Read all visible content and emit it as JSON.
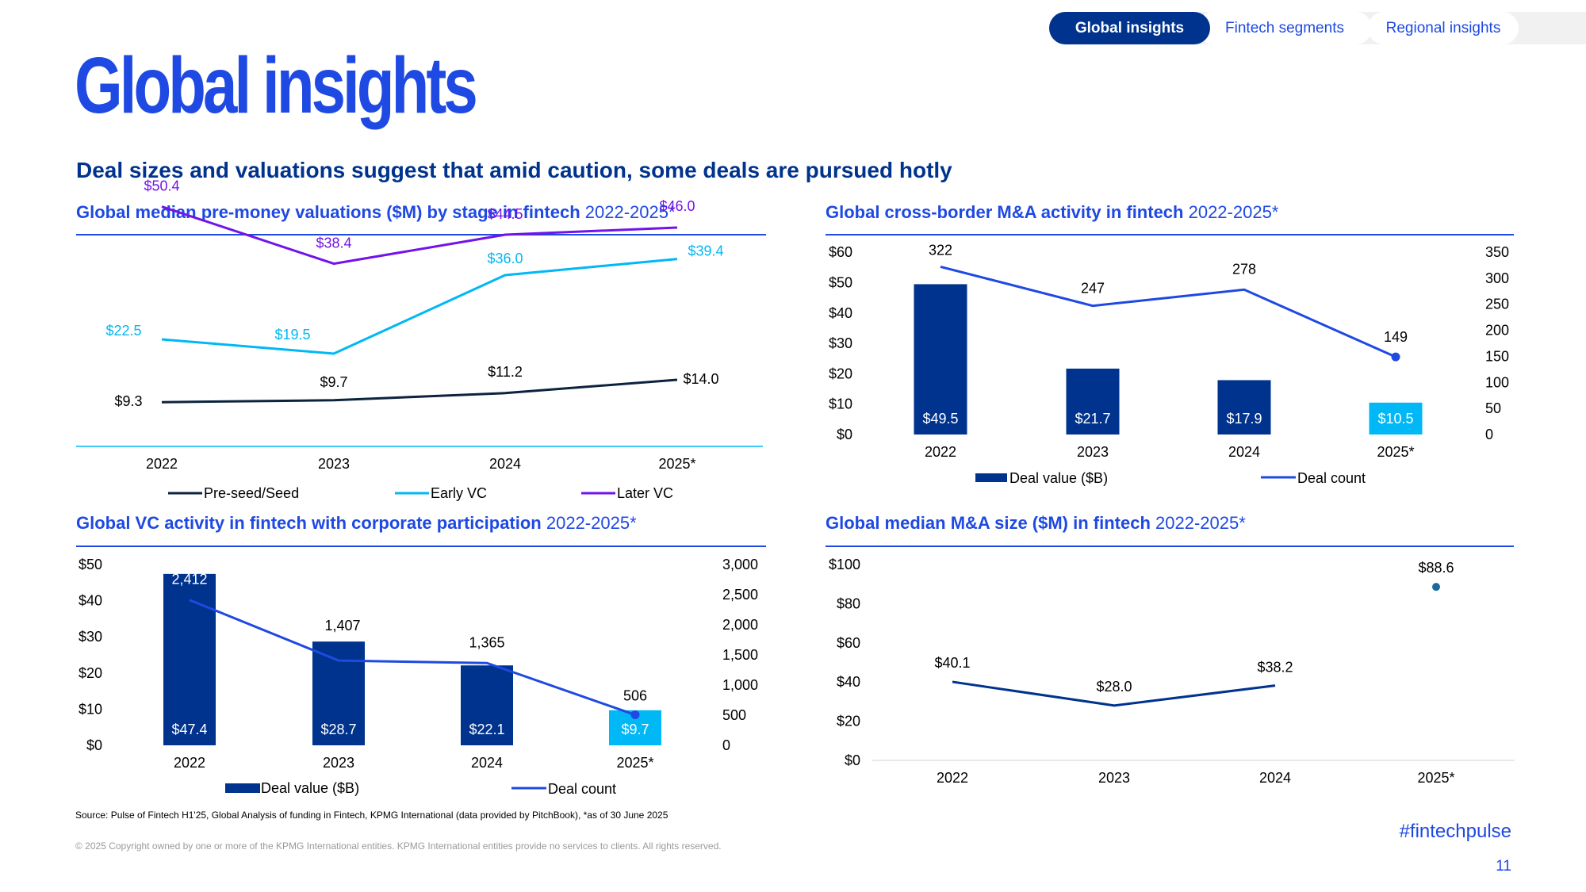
{
  "tabs": {
    "active": "Global insights",
    "items": [
      "Fintech segments",
      "Regional insights"
    ]
  },
  "page_title": "Global insights",
  "subtitle": "Deal sizes and valuations suggest that amid caution, some deals are pursued hotly",
  "colors": {
    "dark_navy": "#0c233f",
    "navy": "#00338d",
    "cobalt": "#1e49e2",
    "cyan": "#00b8f5",
    "purple": "#7213ea",
    "dot": "#1b6a9c"
  },
  "chart_data": [
    {
      "id": "valuations",
      "type": "line",
      "title_bold": "Global median pre-money valuations ($M) by stage in fintech",
      "title_rest": " 2022-2025*",
      "categories": [
        "2022",
        "2023",
        "2024",
        "2025*"
      ],
      "series": [
        {
          "name": "Pre-seed/Seed",
          "values": [
            9.3,
            9.7,
            11.2,
            14.0
          ],
          "labels": [
            "$9.3",
            "$9.7",
            "$11.2",
            "$14.0"
          ]
        },
        {
          "name": "Early VC",
          "values": [
            22.5,
            19.5,
            36.0,
            39.4
          ],
          "labels": [
            "$22.5",
            "$19.5",
            "$36.0",
            "$39.4"
          ]
        },
        {
          "name": "Later VC",
          "values": [
            50.4,
            38.4,
            44.5,
            46.0
          ],
          "labels": [
            "$50.4",
            "$38.4",
            "$44.5",
            "$46.0"
          ]
        }
      ],
      "ylim": [
        0,
        60
      ],
      "legend_position": "bottom"
    },
    {
      "id": "cross_border",
      "type": "bar",
      "title_bold": "Global cross-border M&A activity in fintech",
      "title_rest": " 2022-2025*",
      "categories": [
        "2022",
        "2023",
        "2024",
        "2025*"
      ],
      "bars": {
        "name": "Deal value ($B)",
        "values": [
          49.5,
          21.7,
          17.9,
          10.5
        ],
        "labels": [
          "$49.5",
          "$21.7",
          "$17.9",
          "$10.5"
        ]
      },
      "line": {
        "name": "Deal count",
        "values": [
          322,
          247,
          278,
          149
        ],
        "labels": [
          "322",
          "247",
          "278",
          "149"
        ]
      },
      "left_ticks": [
        "$0",
        "$10",
        "$20",
        "$30",
        "$40",
        "$50",
        "$60"
      ],
      "right_ticks": [
        "0",
        "50",
        "100",
        "150",
        "200",
        "250",
        "300",
        "350"
      ],
      "ylim_left": [
        0,
        60
      ],
      "ylim_right": [
        0,
        350
      ],
      "legend_position": "bottom"
    },
    {
      "id": "corporate_vc",
      "type": "bar",
      "title_bold": "Global VC activity in fintech with corporate participation",
      "title_rest": " 2022-2025*",
      "categories": [
        "2022",
        "2023",
        "2024",
        "2025*"
      ],
      "bars": {
        "name": "Deal value ($B)",
        "values": [
          47.4,
          28.7,
          22.1,
          9.7
        ],
        "labels": [
          "$47.4",
          "$28.7",
          "$22.1",
          "$9.7"
        ]
      },
      "line": {
        "name": "Deal count",
        "values": [
          2412,
          1407,
          1365,
          506
        ],
        "labels": [
          "2,412",
          "1,407",
          "1,365",
          "506"
        ]
      },
      "left_ticks": [
        "$0",
        "$10",
        "$20",
        "$30",
        "$40",
        "$50"
      ],
      "right_ticks": [
        "0",
        "500",
        "1,000",
        "1,500",
        "2,000",
        "2,500",
        "3,000"
      ],
      "ylim_left": [
        0,
        50
      ],
      "ylim_right": [
        0,
        3000
      ],
      "legend_position": "bottom"
    },
    {
      "id": "median_ma",
      "type": "line",
      "title_bold": "Global median M&A size ($M) in fintech",
      "title_rest": " 2022-2025*",
      "categories": [
        "2022",
        "2023",
        "2024",
        "2025*"
      ],
      "values": [
        40.1,
        28.0,
        38.2,
        88.6
      ],
      "labels": [
        "$40.1",
        "$28.0",
        "$38.2",
        "$88.6"
      ],
      "y_ticks": [
        "$0",
        "$20",
        "$40",
        "$60",
        "$80",
        "$100"
      ],
      "ylim": [
        0,
        100
      ]
    }
  ],
  "footer": {
    "source": "Source: Pulse of Fintech H1'25, Global Analysis of funding in Fintech, KPMG International (data provided by PitchBook), *as of 30 June 2025",
    "copyright": "© 2025 Copyright owned by one or more of the KPMG International entities. KPMG International entities provide no services to clients. All rights reserved.",
    "hashtag": "#fintechpulse",
    "page_number": "11"
  }
}
